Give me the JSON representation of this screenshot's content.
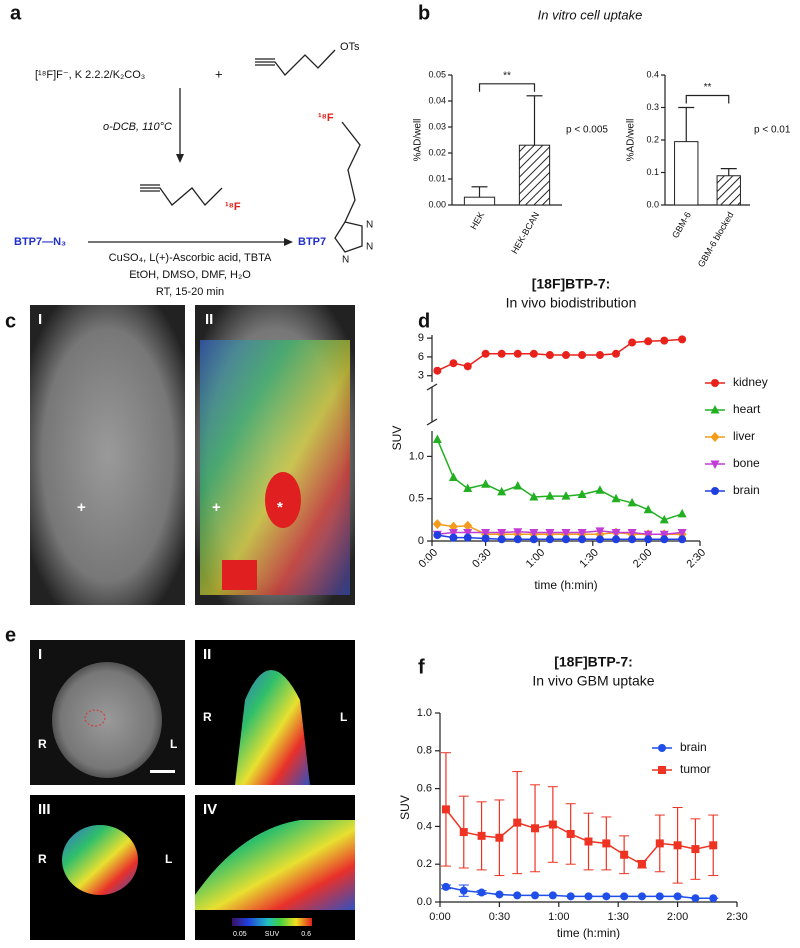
{
  "panel_labels": [
    "a",
    "b",
    "c",
    "d",
    "e",
    "f"
  ],
  "scheme": {
    "reagent": "[¹⁸F]F⁻, K 2.2.2/K₂CO₃",
    "plus": "+",
    "tosylate": "OTs",
    "step1": "o-DCB, 110°C",
    "intermediate_label": "¹⁸F",
    "azide": "BTP7—N₃",
    "step2": [
      "CuSO₄, L(+)-Ascorbic acid, TBTA",
      "EtOH, DMSO, DMF, H₂O",
      "RT, 15-20 min"
    ],
    "product_label": "BTP7",
    "product_f": "¹⁸F",
    "triazole_n": [
      "N",
      "N",
      "N"
    ]
  },
  "panel_b_title": "In vitro cell uptake",
  "images": {
    "c": [
      {
        "label": "I",
        "marks": [
          "+"
        ]
      },
      {
        "label": "II",
        "marks": [
          "+",
          "*"
        ]
      }
    ],
    "e": [
      {
        "label": "I",
        "left": "R",
        "right": "L"
      },
      {
        "label": "II",
        "left": "R",
        "right": "L"
      },
      {
        "label": "III",
        "left": "R",
        "right": "L"
      },
      {
        "label": "IV"
      }
    ],
    "colorbar": [
      "0.05",
      "SUV",
      "0.6"
    ]
  },
  "chart_data": [
    {
      "type": "bar",
      "ylabel": "%AD/well",
      "categories": [
        "HEK",
        "HEK-BCAN"
      ],
      "values": [
        0.003,
        0.023
      ],
      "errors": [
        0.004,
        0.019
      ],
      "hatch": [
        false,
        true
      ],
      "color": "#ffffff",
      "ylim": [
        0,
        0.05
      ],
      "yticks": [
        {
          "value": 0,
          "label": "0.00"
        },
        0.01,
        0.02,
        0.03,
        0.04,
        0.05
      ],
      "annotations": [
        "**",
        "p < 0.005"
      ]
    },
    {
      "type": "bar",
      "ylabel": "%AD/well",
      "categories": [
        "GBM-6",
        "GBM-6 blocked"
      ],
      "values": [
        0.195,
        0.09
      ],
      "errors": [
        0.105,
        0.022
      ],
      "hatch": [
        false,
        true
      ],
      "color": "#ffffff",
      "ylim": [
        0,
        0.4
      ],
      "yticks": [
        {
          "value": 0,
          "label": "0.0"
        },
        0.1,
        0.2,
        0.3,
        0.4
      ],
      "annotations": [
        "**",
        "p < 0.01"
      ]
    },
    {
      "type": "line",
      "title": "[18F]BTP-7:",
      "subtitle": "In vivo biodistribution",
      "xlabel": "time (h:min)",
      "ylabel": "SUV",
      "x": [
        3,
        12,
        20,
        30,
        39,
        48,
        57,
        66,
        75,
        84,
        94,
        103,
        112,
        121,
        130,
        140
      ],
      "xlim": [
        0,
        150
      ],
      "xticks": [
        {
          "value": 0,
          "label": "0:00"
        },
        {
          "value": 30,
          "label": "0:30"
        },
        {
          "value": 60,
          "label": "1:00"
        },
        {
          "value": 90,
          "label": "1:30"
        },
        {
          "value": 120,
          "label": "2:00"
        },
        {
          "value": 150,
          "label": "2:30"
        }
      ],
      "ylim": [
        0,
        1.3
      ],
      "yticks": [
        0,
        0.5,
        {
          "value": 1,
          "label": "1.0"
        }
      ],
      "ylim_upper": [
        2,
        9.5
      ],
      "yticks_upper": [
        3,
        6,
        9
      ],
      "legend": "right",
      "series": [
        {
          "name": "kidney",
          "color": "#e8221b",
          "marker": "circle",
          "axis": "upper",
          "values": [
            3.8,
            5,
            4.5,
            6.5,
            6.5,
            6.5,
            6.5,
            6.3,
            6.3,
            6.3,
            6.3,
            6.5,
            8.3,
            8.5,
            8.6,
            8.8
          ]
        },
        {
          "name": "heart",
          "color": "#22b022",
          "marker": "triangle",
          "values": [
            1.2,
            0.75,
            0.62,
            0.67,
            0.58,
            0.65,
            0.52,
            0.53,
            0.53,
            0.55,
            0.6,
            0.5,
            0.45,
            0.37,
            0.25,
            0.32
          ]
        },
        {
          "name": "liver",
          "color": "#f39c1a",
          "marker": "diamond",
          "values": [
            0.2,
            0.17,
            0.18,
            0.08,
            0.08,
            0.08,
            0.08,
            0.08,
            0.08,
            0.08,
            0.08,
            0.1,
            0.08,
            0.08,
            0.08,
            0.08
          ]
        },
        {
          "name": "bone",
          "color": "#c23cd6",
          "marker": "triangle-down",
          "values": [
            0.08,
            0.1,
            0.1,
            0.1,
            0.1,
            0.11,
            0.1,
            0.1,
            0.1,
            0.1,
            0.12,
            0.1,
            0.1,
            0.08,
            0.08,
            0.1
          ]
        },
        {
          "name": "brain",
          "color": "#1f3fe0",
          "marker": "circle",
          "values": [
            0.07,
            0.04,
            0.04,
            0.03,
            0.02,
            0.02,
            0.02,
            0.02,
            0.02,
            0.02,
            0.02,
            0.02,
            0.02,
            0.02,
            0.02,
            0.02
          ]
        }
      ]
    },
    {
      "type": "line",
      "title": "[18F]BTP-7:",
      "subtitle": "In vivo GBM uptake",
      "xlabel": "time (h:min)",
      "ylabel": "SUV",
      "x": [
        3,
        12,
        21,
        30,
        39,
        48,
        57,
        66,
        75,
        84,
        93,
        102,
        111,
        120,
        129,
        138
      ],
      "xlim": [
        0,
        150
      ],
      "xticks": [
        {
          "value": 0,
          "label": "0:00"
        },
        {
          "value": 30,
          "label": "0:30"
        },
        {
          "value": 60,
          "label": "1:00"
        },
        {
          "value": 90,
          "label": "1:30"
        },
        {
          "value": 120,
          "label": "2:00"
        },
        {
          "value": 150,
          "label": "2:30"
        }
      ],
      "ylim": [
        0,
        1
      ],
      "yticks": [
        {
          "value": 0,
          "label": "0.0"
        },
        0.2,
        0.4,
        0.6,
        0.8,
        {
          "value": 1,
          "label": "1.0"
        }
      ],
      "legend": "upper right",
      "series": [
        {
          "name": "brain",
          "color": "#1f4fe8",
          "marker": "circle",
          "values": [
            0.08,
            0.06,
            0.05,
            0.04,
            0.035,
            0.035,
            0.035,
            0.03,
            0.03,
            0.03,
            0.03,
            0.03,
            0.03,
            0.03,
            0.02,
            0.02
          ],
          "errors": [
            0.01,
            0.03,
            0.01,
            0,
            0,
            0,
            0,
            0,
            0,
            0,
            0,
            0,
            0,
            0,
            0,
            0
          ]
        },
        {
          "name": "tumor",
          "color": "#ee3322",
          "marker": "square",
          "values": [
            0.49,
            0.37,
            0.35,
            0.34,
            0.42,
            0.39,
            0.41,
            0.36,
            0.32,
            0.31,
            0.25,
            0.2,
            0.31,
            0.3,
            0.28,
            0.3
          ],
          "errors": [
            0.3,
            0.19,
            0.18,
            0.2,
            0.27,
            0.23,
            0.2,
            0.16,
            0.15,
            0.14,
            0.1,
            0.02,
            0.15,
            0.2,
            0.16,
            0.16
          ]
        }
      ]
    }
  ]
}
